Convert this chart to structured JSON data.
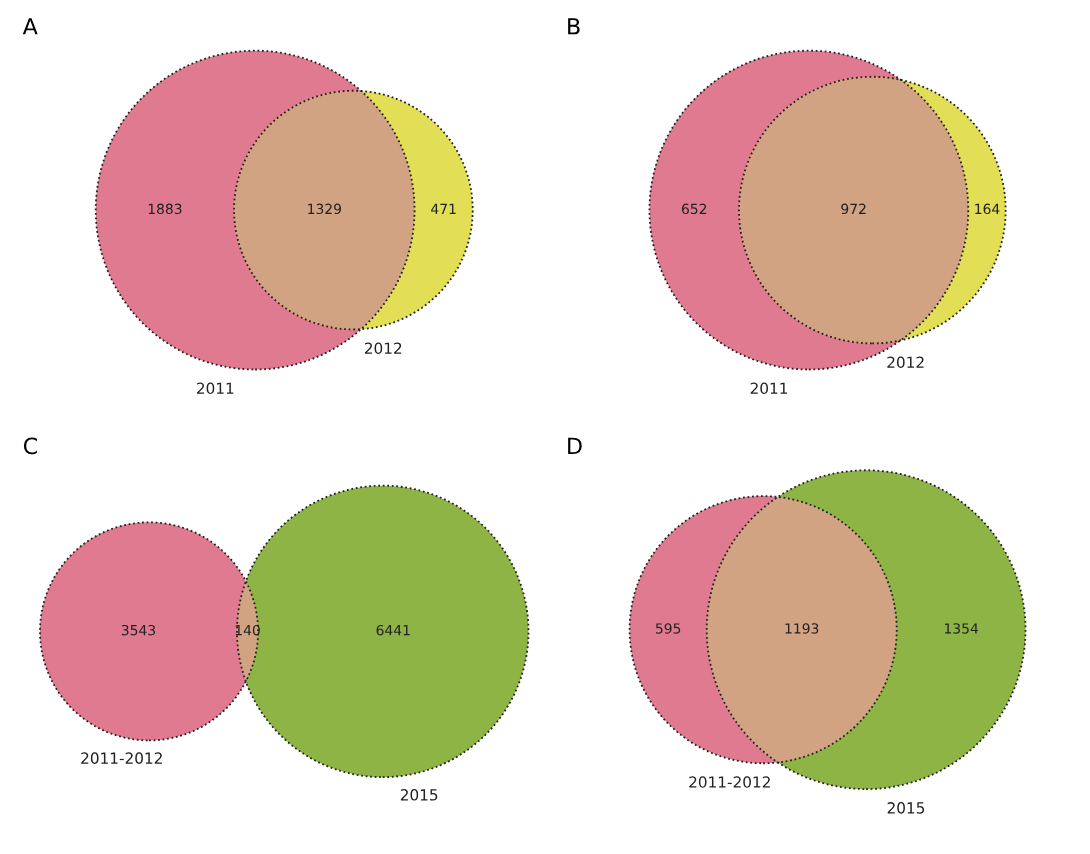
{
  "chart_data": [
    {
      "type": "other",
      "title": "A",
      "categories": [
        "2011",
        null,
        "2012"
      ],
      "values": [
        1883,
        1329,
        471
      ],
      "colors": [
        "#e07a90",
        "#d2a383",
        "#e2de55"
      ],
      "data_labels": true
    },
    {
      "type": "other",
      "title": "B",
      "categories": [
        "2011",
        null,
        "2012"
      ],
      "values": [
        652,
        972,
        164
      ],
      "colors": [
        "#e07a90",
        "#d2a383",
        "#e2de55"
      ],
      "data_labels": true
    },
    {
      "type": "other",
      "title": "C",
      "categories": [
        "2011-2012",
        null,
        "2015"
      ],
      "values": [
        3543,
        140,
        6441
      ],
      "colors": [
        "#e07a90",
        "#d2a383",
        "#8fb446"
      ],
      "data_labels": true
    },
    {
      "type": "other",
      "title": "D",
      "categories": [
        "2011-2012",
        null,
        "2015"
      ],
      "values": [
        595,
        1193,
        1354
      ],
      "colors": [
        "#e07a90",
        "#d2a383",
        "#8fb446"
      ],
      "data_labels": true
    }
  ]
}
